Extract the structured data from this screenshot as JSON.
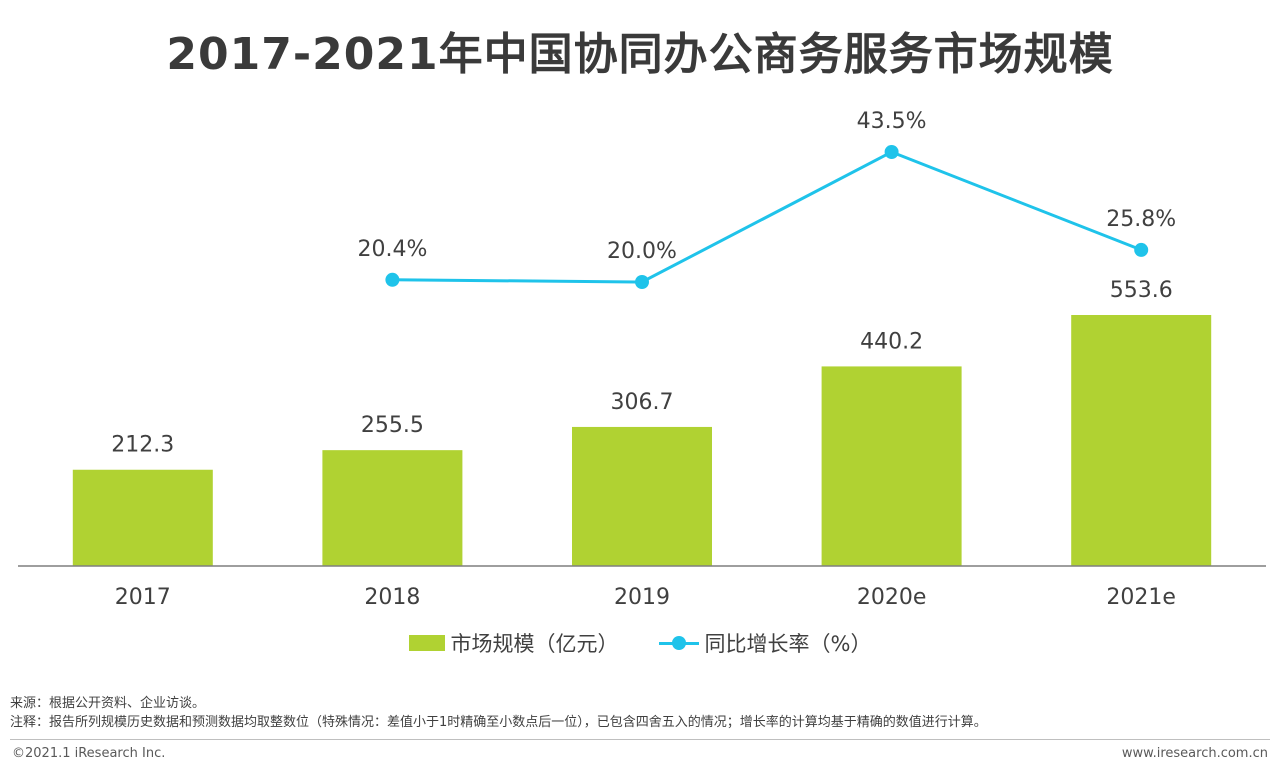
{
  "title": "2017-2021年中国协同办公商务服务市场规模",
  "chart_data": {
    "type": "bar+line",
    "categories": [
      "2017",
      "2018",
      "2019",
      "2020e",
      "2021e"
    ],
    "series": [
      {
        "name": "市场规模（亿元）",
        "type": "bar",
        "values": [
          212.3,
          255.5,
          306.7,
          440.2,
          553.6
        ],
        "labels": [
          "212.3",
          "255.5",
          "306.7",
          "440.2",
          "553.6"
        ],
        "color": "#b0d232"
      },
      {
        "name": "同比增长率（%）",
        "type": "line",
        "values": [
          null,
          20.4,
          20.0,
          43.5,
          25.8
        ],
        "labels": [
          "",
          "20.4%",
          "20.0%",
          "43.5%",
          "25.8%"
        ],
        "color": "#1fc3ea"
      }
    ],
    "legend_position": "bottom",
    "grid": false
  },
  "notes": {
    "source": "来源：根据公开资料、企业访谈。",
    "remark": "注释：报告所列规模历史数据和预测数据均取整数位（特殊情况：差值小于1时精确至小数点后一位），已包含四舍五入的情况；增长率的计算均基于精确的数值进行计算。"
  },
  "footer": {
    "copyright": "©2021.1 iResearch Inc.",
    "website": "www.iresearch.com.cn"
  }
}
